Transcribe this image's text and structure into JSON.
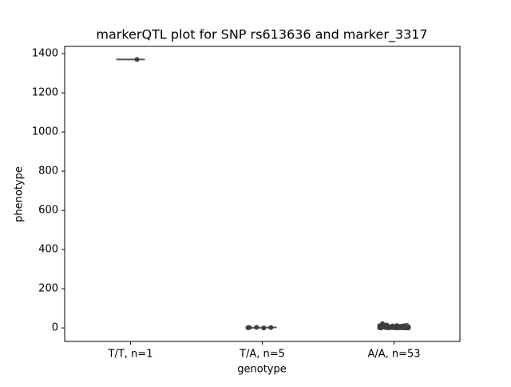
{
  "chart_data": {
    "type": "strip",
    "title": "markerQTL plot for SNP rs613636 and marker_3317",
    "xlabel": "genotype",
    "ylabel": "phenotype",
    "categories": [
      "T/T, n=1",
      "T/A, n=5",
      "A/A, n=53"
    ],
    "values": [
      [
        1370
      ],
      [
        1,
        2,
        0,
        3,
        2
      ],
      [
        2,
        5,
        1,
        0,
        8,
        3,
        12,
        4,
        6,
        0,
        1,
        2,
        15,
        3,
        7,
        9,
        2,
        0,
        4,
        1,
        5,
        11,
        3,
        6,
        2,
        0,
        8,
        1,
        4,
        22,
        3,
        5,
        2,
        7,
        0,
        1,
        10,
        3,
        6,
        2,
        4,
        14,
        1,
        0,
        5,
        3,
        2,
        9,
        1,
        6,
        4,
        2,
        3
      ]
    ],
    "color": "#3d3d3d",
    "line_color": "#555555",
    "ylim": [
      -69,
      1437
    ],
    "yticks": [
      0,
      200,
      400,
      600,
      800,
      1000,
      1200,
      1400
    ],
    "grid": false
  }
}
